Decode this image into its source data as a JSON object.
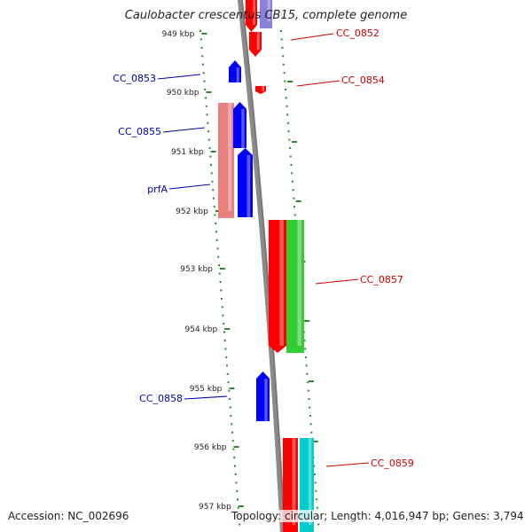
{
  "title": "Caulobacter crescentus CB15, complete genome",
  "footer": {
    "accession": "Accession: NC_002696",
    "stats": "Topology: circular; Length: 4,016,947 bp; Genes: 3,794"
  },
  "colors": {
    "backbone": "#8a8a8a",
    "tick": "#2a8a2a",
    "forward_gene": "#ff0000",
    "reverse_gene": "#0000ff",
    "rrna_like_pink": "#e88080",
    "green_gene": "#33cc33",
    "cyan_gene": "#00cccc",
    "purple_gene": "#8a80dd",
    "label_forward": "#cc0000",
    "label_reverse": "#0000aa"
  },
  "ruler": [
    {
      "label": "949 kbp"
    },
    {
      "label": "950 kbp"
    },
    {
      "label": "951 kbp"
    },
    {
      "label": "952 kbp"
    },
    {
      "label": "953 kbp"
    },
    {
      "label": "954 kbp"
    },
    {
      "label": "955 kbp"
    },
    {
      "label": "956 kbp"
    },
    {
      "label": "957 kbp"
    }
  ],
  "genes": [
    {
      "name": "CC_0852",
      "strand": "+",
      "color": "forward_gene",
      "icon": "gene-arrow-down"
    },
    {
      "name": "CC_0853",
      "strand": "-",
      "color": "reverse_gene",
      "icon": "gene-arrow-up"
    },
    {
      "name": "CC_0854",
      "strand": "+",
      "color": "forward_gene",
      "icon": "gene-arrow-down"
    },
    {
      "name": "CC_0855",
      "strand": "-",
      "color": "reverse_gene",
      "icon": "gene-arrow-up"
    },
    {
      "name": "prfA",
      "strand": "-",
      "color": "reverse_gene",
      "icon": "gene-arrow-up"
    },
    {
      "name": "CC_0857",
      "strand": "+",
      "color": "forward_gene",
      "icon": "gene-arrow-down"
    },
    {
      "name": "CC_0858",
      "strand": "-",
      "color": "reverse_gene",
      "icon": "gene-arrow-up"
    },
    {
      "name": "CC_0859",
      "strand": "+",
      "color": "forward_gene",
      "icon": "gene-arrow-down"
    }
  ]
}
